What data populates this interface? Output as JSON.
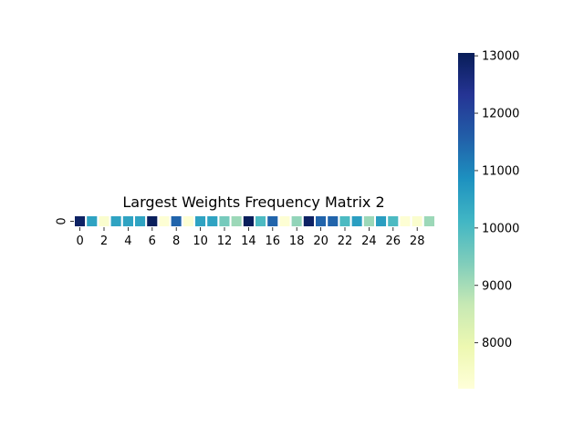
{
  "chart_data": {
    "type": "heatmap",
    "title": "Largest Weights Frequency Matrix 2",
    "xlabel": "",
    "ylabel": "",
    "rows": [
      "0"
    ],
    "columns": [
      0,
      1,
      2,
      3,
      4,
      5,
      6,
      7,
      8,
      9,
      10,
      11,
      12,
      13,
      14,
      15,
      16,
      17,
      18,
      19,
      20,
      21,
      22,
      23,
      24,
      25,
      26,
      27,
      28,
      29
    ],
    "x_tick_labels": [
      "0",
      "2",
      "4",
      "6",
      "8",
      "10",
      "12",
      "14",
      "16",
      "18",
      "20",
      "22",
      "24",
      "26",
      "28"
    ],
    "values": [
      [
        12900,
        10500,
        7400,
        10500,
        10500,
        10500,
        13000,
        7300,
        11500,
        7300,
        10500,
        10500,
        9500,
        9100,
        13000,
        10000,
        11500,
        7300,
        9200,
        12900,
        11500,
        11500,
        10000,
        10600,
        9100,
        10600,
        10000,
        7300,
        7400,
        9100
      ]
    ],
    "colorbar": {
      "min": 7200,
      "max": 13050,
      "ticks": [
        8000,
        9000,
        10000,
        11000,
        12000,
        13000
      ],
      "tick_labels": [
        "8000",
        "9000",
        "10000",
        "11000",
        "12000",
        "13000"
      ]
    },
    "colormap": "YlGnBu",
    "cell_border_color": "#ffffff"
  }
}
